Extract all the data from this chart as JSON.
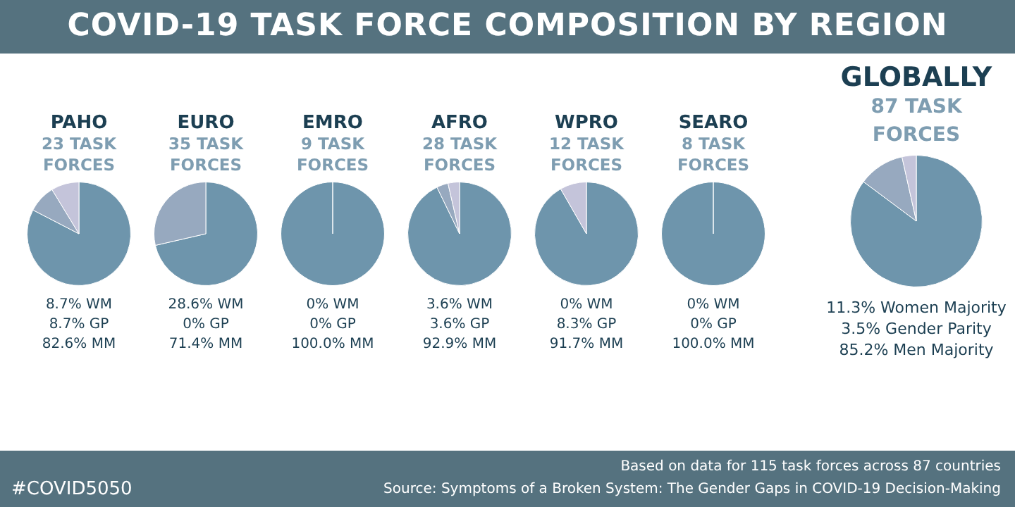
{
  "chart_data": [
    {
      "type": "other",
      "title": "COVID-19 TASK FORCE COMPOSITION BY REGION",
      "annotations": [
        "#COVID5050",
        "Based on data for 115 task forces across 87 countries",
        "Source: Symptoms of a Broken System: The Gender Gaps in COVID-19 Decision-Making"
      ]
    },
    {
      "type": "pie",
      "title": "PAHO",
      "subtitle": "23 TASK FORCES",
      "categories": [
        null,
        null,
        null
      ],
      "values": [
        82.6,
        8.7,
        8.7
      ],
      "colors": [
        "#6e95ac",
        "#97a9bf",
        "#c4c4da"
      ],
      "annotations": [
        "8.7% WM",
        "8.7% GP",
        "82.6% MM"
      ]
    },
    {
      "type": "pie",
      "title": "EURO",
      "subtitle": "35 TASK FORCES",
      "categories": [
        null,
        null,
        null
      ],
      "values": [
        71.4,
        28.6,
        0
      ],
      "colors": [
        "#6e95ac",
        "#97a9bf",
        "#c4c4da"
      ],
      "annotations": [
        "28.6% WM",
        "0% GP",
        "71.4% MM"
      ]
    },
    {
      "type": "pie",
      "title": "EMRO",
      "subtitle": "9 TASK FORCES",
      "categories": [
        null,
        null,
        null
      ],
      "values": [
        100,
        0,
        0
      ],
      "colors": [
        "#6e95ac",
        "#97a9bf",
        "#c4c4da"
      ],
      "annotations": [
        "0% WM",
        "0% GP",
        "100.0% MM"
      ]
    },
    {
      "type": "pie",
      "title": "AFRO",
      "subtitle": "28 TASK FORCES",
      "categories": [
        null,
        null,
        null
      ],
      "values": [
        92.9,
        3.6,
        3.6
      ],
      "colors": [
        "#6e95ac",
        "#97a9bf",
        "#c4c4da"
      ],
      "annotations": [
        "3.6% WM",
        "3.6% GP",
        "92.9% MM"
      ]
    },
    {
      "type": "pie",
      "title": "WPRO",
      "subtitle": "12 TASK FORCES",
      "categories": [
        null,
        null,
        null
      ],
      "values": [
        91.7,
        0,
        8.3
      ],
      "colors": [
        "#6e95ac",
        "#97a9bf",
        "#c4c4da"
      ],
      "annotations": [
        "0% WM",
        "8.3% GP",
        "91.7% MM"
      ]
    },
    {
      "type": "pie",
      "title": "SEARO",
      "subtitle": "8 TASK FORCES",
      "categories": [
        null,
        null,
        null
      ],
      "values": [
        100,
        0,
        0
      ],
      "colors": [
        "#6e95ac",
        "#97a9bf",
        "#c4c4da"
      ],
      "annotations": [
        "0% WM",
        "0% GP",
        "100.0% MM"
      ]
    },
    {
      "type": "pie",
      "title": "GLOBALLY",
      "subtitle": "87 TASK FORCES",
      "categories": [
        null,
        null,
        null
      ],
      "values": [
        85.2,
        11.3,
        3.5
      ],
      "colors": [
        "#6e95ac",
        "#97a9bf",
        "#c4c4da"
      ],
      "annotations": [
        "11.3% Women Majority",
        "3.5% Gender Parity",
        "85.2% Men Majority"
      ]
    }
  ]
}
